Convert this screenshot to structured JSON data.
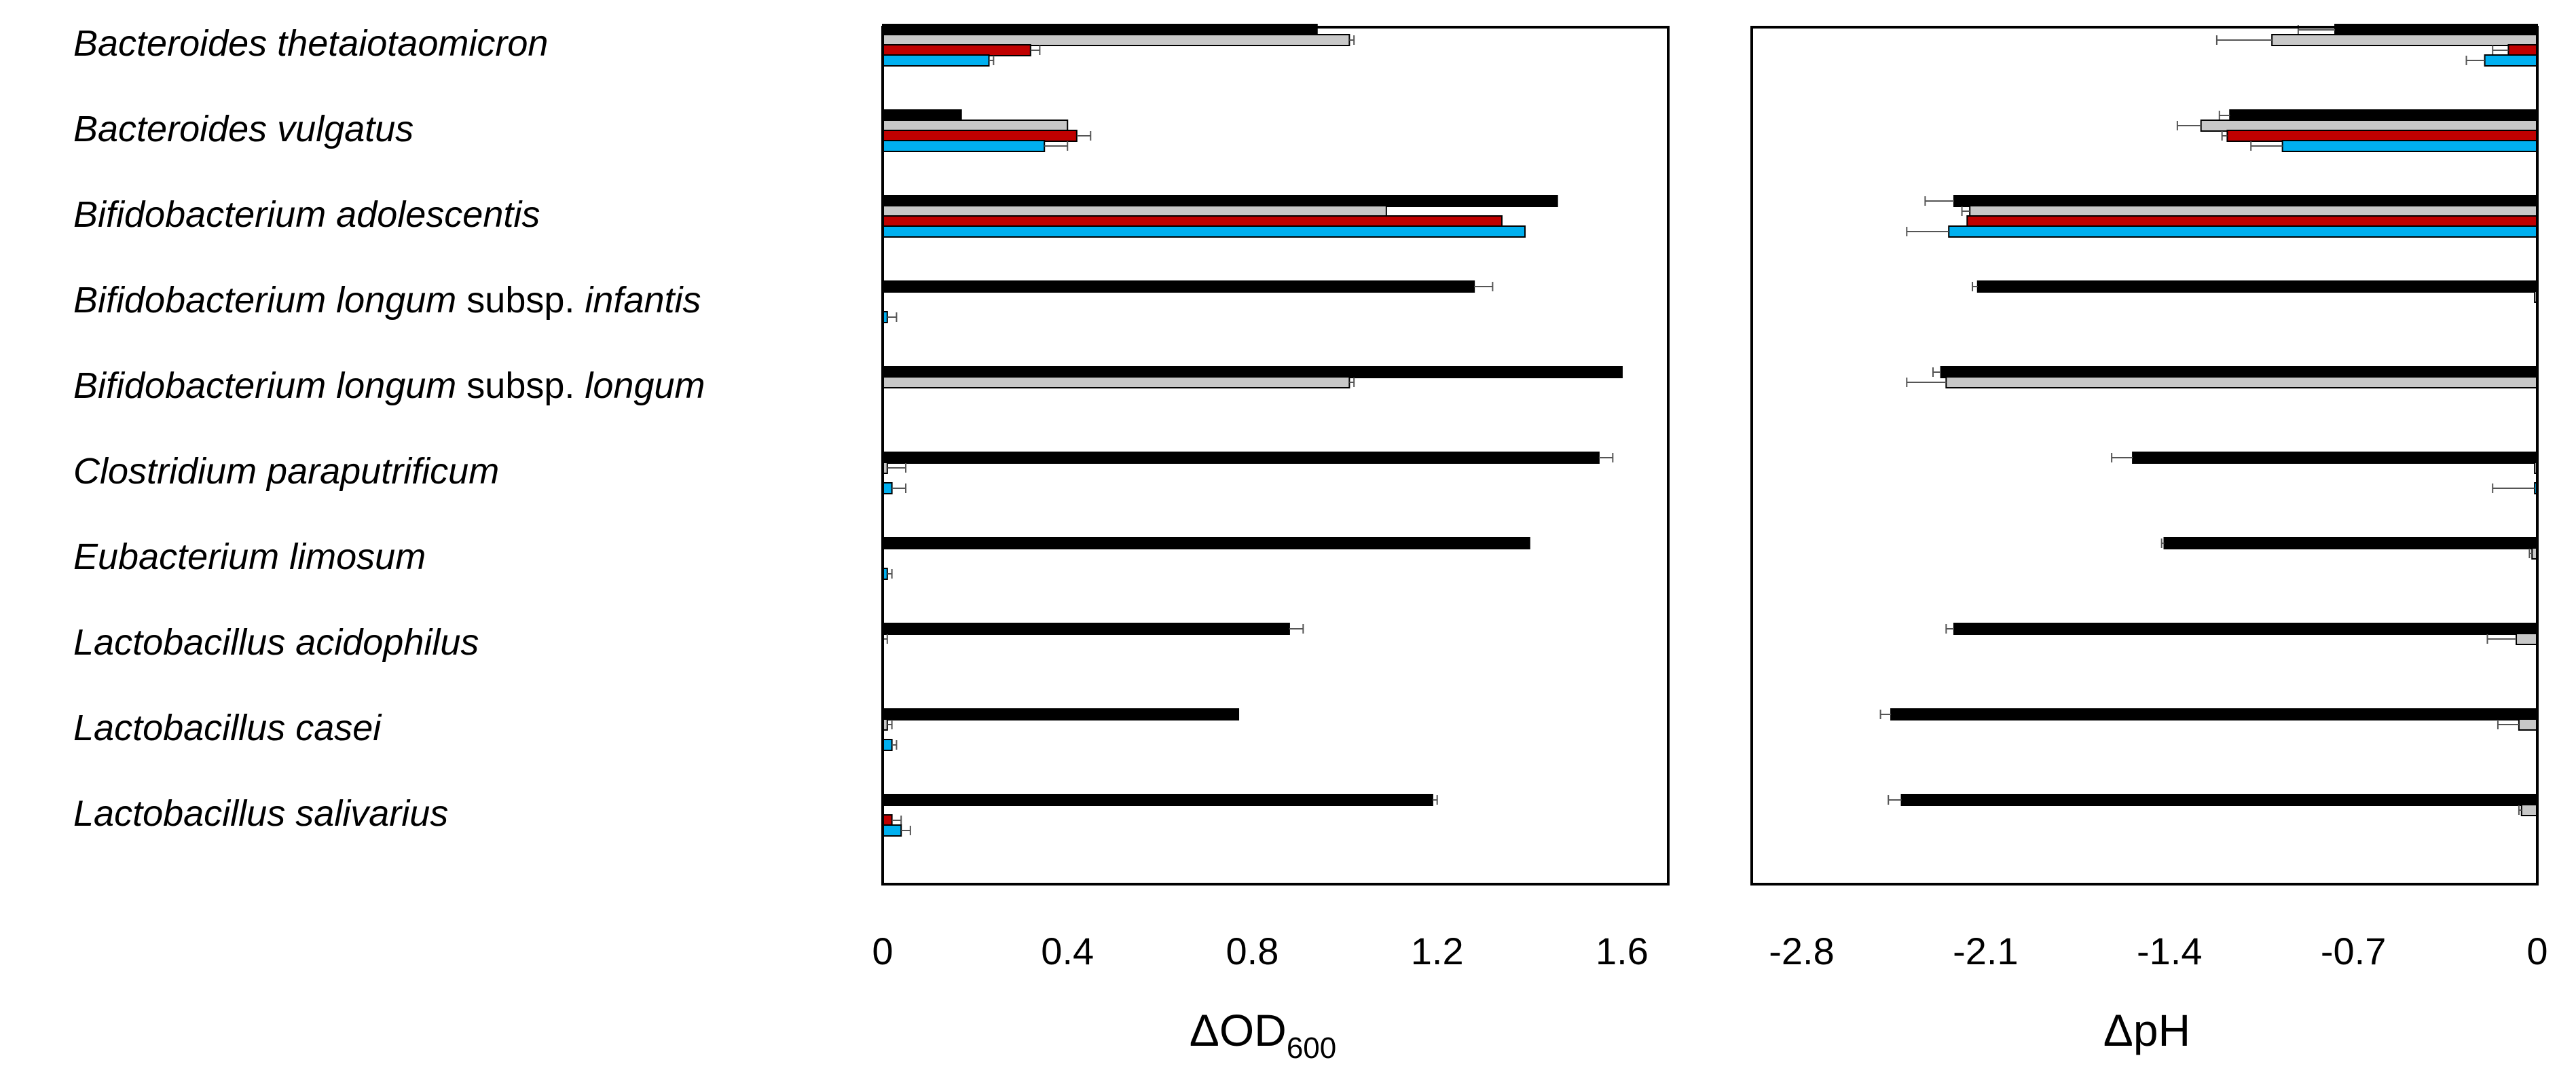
{
  "chart_data": [
    {
      "type": "bar",
      "orientation": "horizontal",
      "panel": "left",
      "xlabel": "ΔOD",
      "xlabel_sub": "600",
      "xlim": [
        0,
        1.7
      ],
      "xticks": [
        0,
        0.4,
        0.8,
        1.2,
        1.6
      ],
      "xtick_labels": [
        "0",
        "0.4",
        "0.8",
        "1.2",
        "1.6"
      ],
      "categories": [
        {
          "genus": "Bacteroides thetaiotaomicron"
        },
        {
          "genus": "Bacteroides vulgatus"
        },
        {
          "genus": "Bifidobacterium adolescentis"
        },
        {
          "genus": "Bifidobacterium longum",
          "mid": " subsp. ",
          "tail": "infantis"
        },
        {
          "genus": "Bifidobacterium longum",
          "mid": " subsp. ",
          "tail": "longum"
        },
        {
          "genus": "Clostridium paraputrificum"
        },
        {
          "genus": "Eubacterium limosum"
        },
        {
          "genus": "Lactobacillus acidophilus"
        },
        {
          "genus": "Lactobacillus casei"
        },
        {
          "genus": "Lactobacillus salivarius"
        }
      ],
      "series_colors": [
        "#000000",
        "#c8c8c8",
        "#c00000",
        "#00b0f0"
      ],
      "series": [
        {
          "values": [
            0.94,
            0.17,
            1.46,
            1.28,
            1.6,
            1.55,
            1.4,
            0.88,
            0.77,
            1.19
          ],
          "errors": [
            0.0,
            0.0,
            0.0,
            0.04,
            0.0,
            0.03,
            0.0,
            0.03,
            0.0,
            0.01
          ]
        },
        {
          "values": [
            1.01,
            0.4,
            1.09,
            0.0,
            1.01,
            0.01,
            0.0,
            0.0,
            0.01,
            0.0
          ],
          "errors": [
            0.01,
            0.0,
            0.0,
            0.0,
            0.01,
            0.04,
            0.0,
            0.01,
            0.01,
            0.0
          ]
        },
        {
          "values": [
            0.32,
            0.42,
            1.34,
            0.0,
            0.0,
            0.0,
            0.0,
            0.0,
            0.0,
            0.02
          ],
          "errors": [
            0.02,
            0.03,
            0.0,
            0.0,
            0.0,
            0.0,
            0.0,
            0.0,
            0.0,
            0.02
          ]
        },
        {
          "values": [
            0.23,
            0.35,
            1.39,
            0.01,
            0.0,
            0.02,
            0.01,
            0.0,
            0.02,
            0.04
          ],
          "errors": [
            0.01,
            0.05,
            0.0,
            0.02,
            0.0,
            0.03,
            0.01,
            0.0,
            0.01,
            0.02
          ]
        }
      ]
    },
    {
      "type": "bar",
      "orientation": "horizontal",
      "panel": "right",
      "xlabel": "ΔpH",
      "xlim": [
        -2.99,
        0
      ],
      "xticks": [
        -2.8,
        -2.1,
        -1.4,
        -0.7,
        0
      ],
      "xtick_labels": [
        "-2.8",
        "-2.1",
        "-1.4",
        "-0.7",
        "0"
      ],
      "series_colors": [
        "#000000",
        "#c8c8c8",
        "#c00000",
        "#00b0f0"
      ],
      "series": [
        {
          "values": [
            -0.77,
            -1.17,
            -2.22,
            -2.13,
            -2.27,
            -1.54,
            -1.42,
            -2.22,
            -2.46,
            -2.42
          ],
          "errors": [
            0.14,
            0.04,
            0.11,
            0.02,
            0.03,
            0.08,
            0.01,
            0.03,
            0.04,
            0.05
          ]
        },
        {
          "values": [
            -1.01,
            -1.28,
            -2.16,
            -0.01,
            -2.25,
            -0.01,
            -0.02,
            -0.08,
            -0.07,
            -0.06
          ],
          "errors": [
            0.21,
            0.09,
            0.03,
            0.0,
            0.15,
            0.0,
            0.01,
            0.11,
            0.08,
            0.01
          ]
        },
        {
          "values": [
            -0.11,
            -1.18,
            -2.17,
            0.0,
            0.0,
            0.0,
            0.0,
            0.0,
            0.0,
            0.0
          ],
          "errors": [
            0.06,
            0.02,
            0.0,
            0.0,
            0.0,
            0.0,
            0.0,
            0.0,
            0.0,
            0.0
          ]
        },
        {
          "values": [
            -0.2,
            -0.97,
            -2.24,
            0.0,
            0.0,
            -0.01,
            0.0,
            0.0,
            0.0,
            0.0
          ],
          "errors": [
            0.07,
            0.12,
            0.16,
            0.0,
            0.0,
            0.16,
            0.0,
            0.0,
            0.0,
            0.0
          ]
        }
      ]
    }
  ]
}
